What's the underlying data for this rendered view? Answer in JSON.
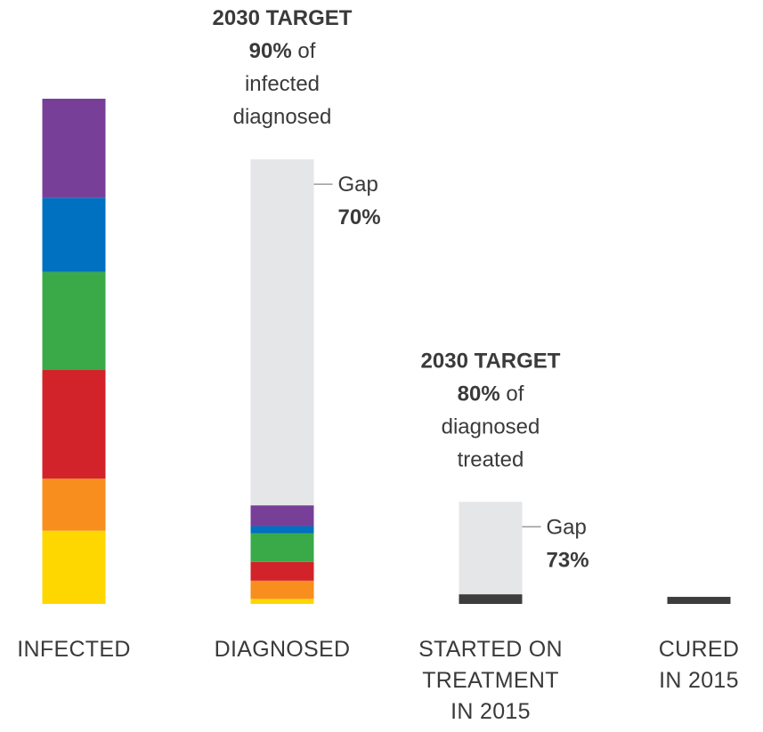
{
  "chart_data": {
    "type": "bar",
    "stacked": true,
    "categories": [
      {
        "label_lines": [
          "INFECTED"
        ]
      },
      {
        "label_lines": [
          "DIAGNOSED"
        ]
      },
      {
        "label_lines": [
          "STARTED ON",
          "TREATMENT",
          "IN 2015"
        ]
      },
      {
        "label_lines": [
          "CURED",
          "IN 2015"
        ]
      }
    ],
    "scale_max": 100,
    "segment_colors": [
      "#ffd700",
      "#f78e1e",
      "#d2232a",
      "#3aaa49",
      "#0070c0",
      "#783f98"
    ],
    "gap_color": "#e5e6e8",
    "treated_color": "#3d3d3d",
    "bars": [
      {
        "segments": [
          14.5,
          10.3,
          21.5,
          19.4,
          14.7,
          19.6
        ]
      },
      {
        "segments": [
          1.0,
          3.6,
          3.7,
          5.7,
          1.4,
          4.1
        ],
        "gap": 68.5
      },
      {
        "segments": [
          1.9
        ],
        "gap": 18.3
      },
      {
        "segments": [
          1.4
        ]
      }
    ],
    "annotations": [
      {
        "bar": 1,
        "lines": [
          {
            "bold": "2030 TARGET"
          },
          {
            "bold": "90%",
            "normal": " of"
          },
          {
            "normal": "infected"
          },
          {
            "normal": "diagnosed"
          }
        ],
        "gap_label": "Gap",
        "gap_value": "70%"
      },
      {
        "bar": 2,
        "lines": [
          {
            "bold": "2030 TARGET"
          },
          {
            "bold": "80%",
            "normal": " of"
          },
          {
            "normal": "diagnosed"
          },
          {
            "normal": "treated"
          }
        ],
        "gap_label": "Gap",
        "gap_value": "73%"
      }
    ]
  }
}
